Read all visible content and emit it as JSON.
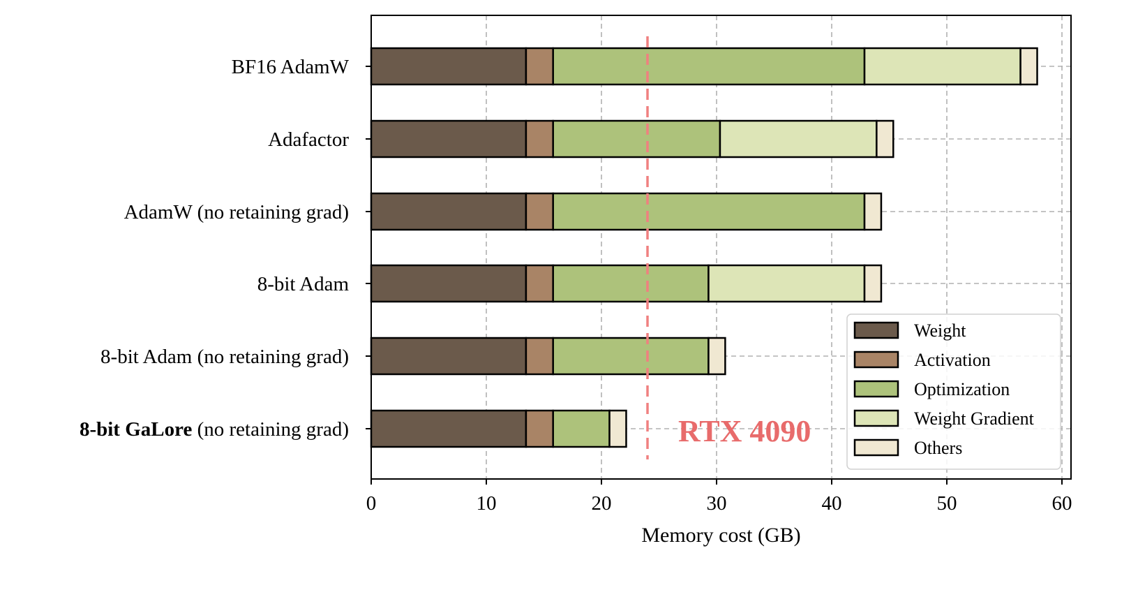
{
  "chart_data": {
    "type": "bar",
    "orientation": "horizontal",
    "stacked": true,
    "title": "",
    "xlabel": "Memory cost (GB)",
    "ylabel": "",
    "xlim": [
      0,
      60.8
    ],
    "xticks": [
      0,
      10,
      20,
      30,
      40,
      50,
      60
    ],
    "xtick_labels": [
      "0",
      "10",
      "20",
      "30",
      "40",
      "50",
      "60"
    ],
    "grid": true,
    "legend_position": "lower-right",
    "categories": [
      {
        "bold": "",
        "rest": "BF16 AdamW"
      },
      {
        "bold": "",
        "rest": "Adafactor"
      },
      {
        "bold": "",
        "rest": "AdamW (no retaining grad)"
      },
      {
        "bold": "",
        "rest": "8-bit Adam"
      },
      {
        "bold": "",
        "rest": "8-bit Adam (no retaining grad)"
      },
      {
        "bold": "8-bit GaLore",
        "rest": " (no retaining grad)"
      }
    ],
    "series": [
      {
        "name": "Weight",
        "color": "#6b5a4b",
        "values": [
          13.45,
          13.45,
          13.45,
          13.45,
          13.45,
          13.45
        ]
      },
      {
        "name": "Activation",
        "color": "#a98466",
        "values": [
          2.35,
          2.35,
          2.35,
          2.35,
          2.35,
          2.35
        ]
      },
      {
        "name": "Optimization",
        "color": "#adc27b",
        "values": [
          27.05,
          14.5,
          27.05,
          13.5,
          13.5,
          4.9
        ]
      },
      {
        "name": "Weight Gradient",
        "color": "#dde5b7",
        "values": [
          13.55,
          13.6,
          0,
          13.55,
          0,
          0
        ]
      },
      {
        "name": "Others",
        "color": "#f0e8d2",
        "values": [
          1.45,
          1.45,
          1.45,
          1.45,
          1.45,
          1.45
        ]
      }
    ],
    "reference_line": {
      "x": 24,
      "label": "RTX 4090",
      "color": "#f08080",
      "label_color": "#e86b6b"
    }
  }
}
